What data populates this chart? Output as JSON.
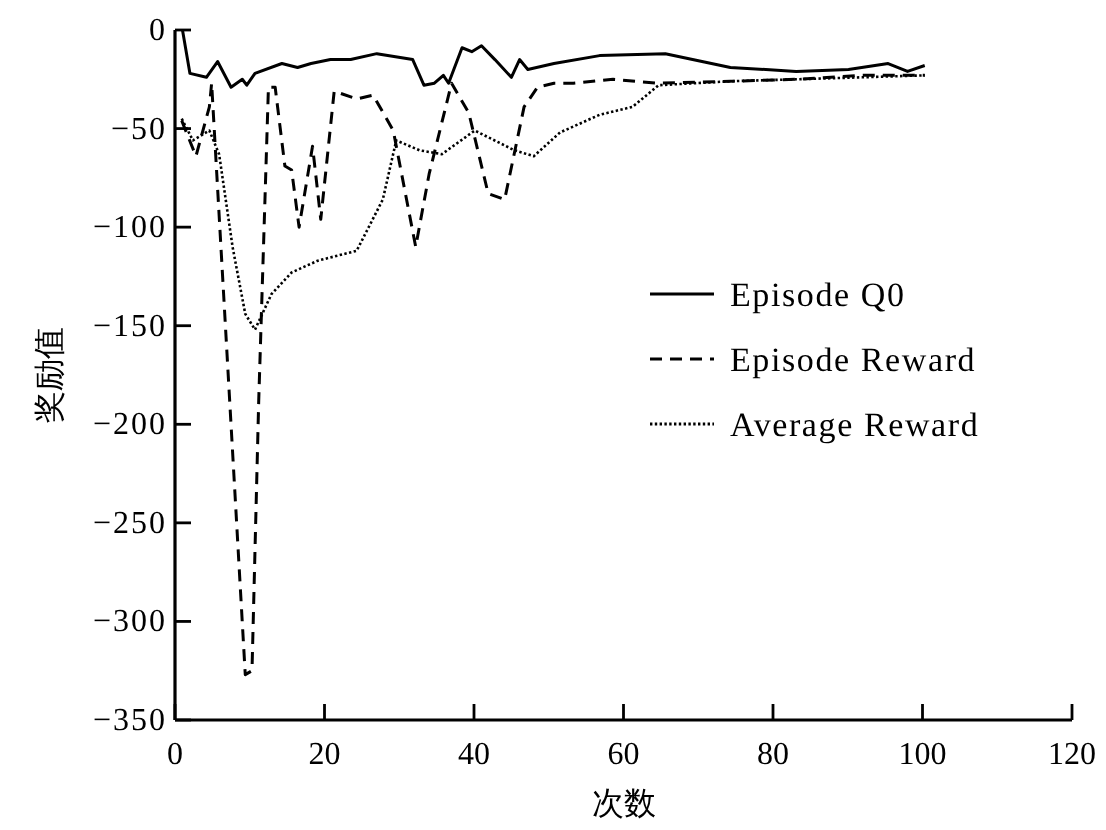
{
  "chart_data": {
    "type": "line",
    "xlabel": "次数",
    "ylabel": "奖励值",
    "xlim": [
      0,
      120
    ],
    "ylim": [
      -350,
      0
    ],
    "xticks": [
      0,
      20,
      40,
      60,
      80,
      100,
      120
    ],
    "yticks": [
      0,
      -50,
      -100,
      -150,
      -200,
      -250,
      -300,
      -350
    ],
    "legend": "right",
    "series": [
      {
        "name": "Episode Q0",
        "color": "#000000",
        "line_style": "solid",
        "x": [
          1,
          2,
          4.2,
          5.7,
          7.5,
          9,
          9.6,
          10.7,
          14.3,
          16.4,
          18.2,
          20.8,
          23.5,
          27,
          31.8,
          33.3,
          34.7,
          35.9,
          36.6,
          38.4,
          39.7,
          41,
          42.8,
          45,
          46.1,
          47.2,
          50.7,
          56.8,
          65.6,
          74.3,
          83.1,
          90.1,
          95.4,
          98,
          100.3
        ],
        "values": [
          0,
          -22,
          -24,
          -16,
          -29,
          -25,
          -28,
          -22,
          -17,
          -19,
          -17,
          -15,
          -15,
          -12,
          -15,
          -28,
          -27,
          -23,
          -27,
          -9,
          -11,
          -8,
          -15,
          -24,
          -15,
          -20,
          -17,
          -13,
          -12,
          -19,
          -21,
          -20,
          -17,
          -21,
          -18
        ]
      },
      {
        "name": "Episode Reward",
        "color": "#000000",
        "line_style": "dashed",
        "x": [
          0.9,
          2.8,
          4.6,
          4.9,
          9.4,
          10.3,
          11.2,
          12.5,
          13.4,
          14.7,
          15.6,
          16.6,
          18.4,
          19.5,
          21.3,
          24.3,
          26.5,
          29.2,
          32.2,
          34,
          37,
          39.3,
          41.9,
          44.1,
          46.7,
          48.5,
          50.7,
          53.3,
          58.6,
          64.6,
          74.3,
          83.1,
          91.9,
          100.3
        ],
        "values": [
          -46,
          -64,
          -39,
          -27,
          -327,
          -325,
          -188,
          -29,
          -29,
          -69,
          -71,
          -100,
          -59,
          -96,
          -31,
          -35,
          -33,
          -51,
          -110,
          -73,
          -27,
          -42,
          -83,
          -86,
          -39,
          -29,
          -27,
          -27,
          -25,
          -27,
          -26,
          -25,
          -23,
          -23
        ]
      },
      {
        "name": "Average Reward",
        "color": "#000000",
        "line_style": "dotted",
        "x": [
          0.9,
          2.4,
          4.6,
          5.9,
          7.7,
          9.4,
          10.7,
          12.9,
          15.6,
          19.1,
          24.3,
          27.8,
          29.6,
          32.7,
          35.7,
          40.1,
          45.4,
          48,
          51.5,
          56.8,
          61.2,
          64.7,
          74.3,
          83.1,
          91.9,
          100.3
        ],
        "values": [
          -45,
          -56,
          -51,
          -63,
          -110,
          -144,
          -152,
          -134,
          -123,
          -117,
          -112,
          -86,
          -56,
          -61,
          -63,
          -51,
          -61,
          -64,
          -52,
          -43,
          -39,
          -28,
          -26,
          -25,
          -24,
          -23
        ]
      }
    ]
  }
}
